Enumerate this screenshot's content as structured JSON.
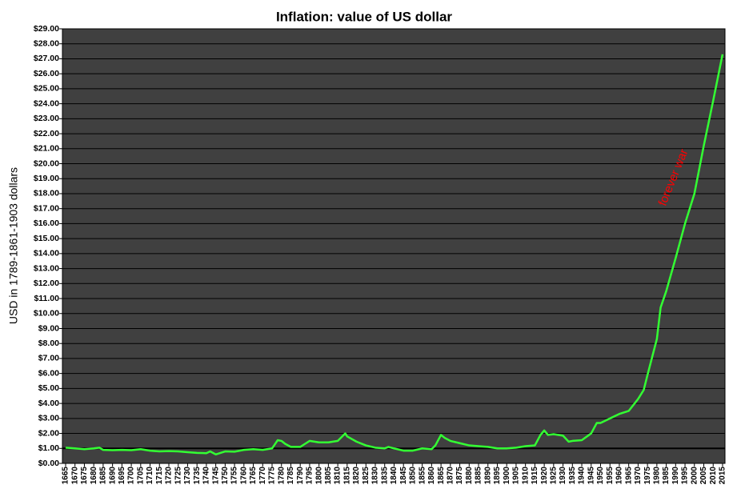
{
  "chart_data": {
    "type": "line",
    "title": "Inflation:  value of US dollar",
    "y_label": "USD in 1789-1861-1903 dollars",
    "annotation": "forever war",
    "annotation_color": "#ff0000",
    "background": "#404040",
    "grid": true,
    "reference_line": 1,
    "xlim": [
      1663.3,
      2016.3
    ],
    "xticks": [
      1665,
      1670,
      1675,
      1680,
      1685,
      1690,
      1695,
      1700,
      1705,
      1710,
      1715,
      1720,
      1725,
      1730,
      1735,
      1740,
      1745,
      1750,
      1755,
      1760,
      1765,
      1770,
      1775,
      1780,
      1785,
      1790,
      1795,
      1800,
      1805,
      1810,
      1815,
      1820,
      1825,
      1830,
      1835,
      1840,
      1845,
      1850,
      1855,
      1860,
      1865,
      1870,
      1875,
      1880,
      1885,
      1890,
      1895,
      1900,
      1905,
      1910,
      1915,
      1920,
      1925,
      1930,
      1935,
      1940,
      1945,
      1950,
      1955,
      1960,
      1965,
      1970,
      1975,
      1980,
      1985,
      1990,
      1995,
      2000,
      2005,
      2010,
      2015
    ],
    "ylim": [
      0,
      29
    ],
    "yticks": [
      {
        "value": 0,
        "label": "$0.00"
      },
      {
        "value": 1,
        "label": "$1.00"
      },
      {
        "value": 2,
        "label": "$2.00"
      },
      {
        "value": 3,
        "label": "$3.00"
      },
      {
        "value": 4,
        "label": "$4.00"
      },
      {
        "value": 5,
        "label": "$5.00"
      },
      {
        "value": 6,
        "label": "$6.00"
      },
      {
        "value": 7,
        "label": "$7.00"
      },
      {
        "value": 8,
        "label": "$8.00"
      },
      {
        "value": 9,
        "label": "$9.00"
      },
      {
        "value": 10,
        "label": "$10.00"
      },
      {
        "value": 11,
        "label": "$11.00"
      },
      {
        "value": 12,
        "label": "$12.00"
      },
      {
        "value": 13,
        "label": "$13.00"
      },
      {
        "value": 14,
        "label": "$14.00"
      },
      {
        "value": 15,
        "label": "$15.00"
      },
      {
        "value": 16,
        "label": "$16.00"
      },
      {
        "value": 17,
        "label": "$17.00"
      },
      {
        "value": 18,
        "label": "$18.00"
      },
      {
        "value": 19,
        "label": "$19.00"
      },
      {
        "value": 20,
        "label": "$20.00"
      },
      {
        "value": 21,
        "label": "$21.00"
      },
      {
        "value": 22,
        "label": "$22.00"
      },
      {
        "value": 23,
        "label": "$23.00"
      },
      {
        "value": 24,
        "label": "$24.00"
      },
      {
        "value": 25,
        "label": "$25.00"
      },
      {
        "value": 26,
        "label": "$26.00"
      },
      {
        "value": 27,
        "label": "$27.00"
      },
      {
        "value": 28,
        "label": "$28.00"
      },
      {
        "value": 29,
        "label": "$29.00"
      }
    ],
    "series": [
      {
        "name": "value of US dollar",
        "color": "#33ff33",
        "x": [
          1665,
          1670,
          1675,
          1680,
          1683,
          1685,
          1690,
          1695,
          1700,
          1705,
          1710,
          1715,
          1720,
          1725,
          1730,
          1735,
          1740,
          1742,
          1745,
          1750,
          1755,
          1760,
          1765,
          1770,
          1775,
          1778,
          1780,
          1782,
          1785,
          1790,
          1795,
          1800,
          1805,
          1810,
          1814,
          1815,
          1820,
          1825,
          1830,
          1835,
          1837,
          1840,
          1845,
          1850,
          1855,
          1860,
          1862,
          1865,
          1867,
          1870,
          1875,
          1880,
          1885,
          1890,
          1895,
          1900,
          1905,
          1910,
          1915,
          1918,
          1920,
          1922,
          1925,
          1930,
          1933,
          1935,
          1940,
          1945,
          1948,
          1950,
          1955,
          1960,
          1965,
          1970,
          1973,
          1975,
          1980,
          1982,
          1985,
          1990,
          1995,
          2000,
          2005,
          2010,
          2015
        ],
        "values": [
          1.05,
          1.0,
          0.95,
          1.0,
          1.05,
          0.9,
          0.88,
          0.9,
          0.88,
          0.95,
          0.85,
          0.8,
          0.82,
          0.8,
          0.75,
          0.7,
          0.68,
          0.8,
          0.6,
          0.8,
          0.78,
          0.9,
          0.95,
          0.9,
          1.0,
          1.55,
          1.5,
          1.3,
          1.1,
          1.1,
          1.5,
          1.4,
          1.4,
          1.5,
          2.0,
          1.8,
          1.45,
          1.2,
          1.05,
          1.0,
          1.1,
          1.0,
          0.85,
          0.85,
          1.0,
          0.95,
          1.2,
          1.9,
          1.7,
          1.5,
          1.35,
          1.2,
          1.15,
          1.1,
          1.0,
          1.0,
          1.05,
          1.15,
          1.2,
          1.9,
          2.2,
          1.9,
          1.95,
          1.85,
          1.45,
          1.5,
          1.55,
          2.0,
          2.7,
          2.7,
          3.0,
          3.3,
          3.5,
          4.3,
          4.9,
          5.9,
          8.3,
          10.4,
          11.5,
          13.7,
          16.0,
          18.0,
          21.2,
          24.2,
          27.3
        ]
      }
    ]
  }
}
